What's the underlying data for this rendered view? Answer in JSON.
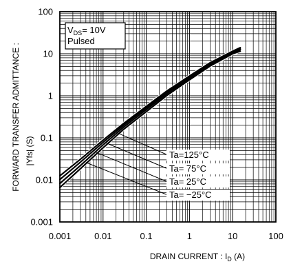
{
  "chart_data": {
    "type": "line",
    "x_scale": "log",
    "y_scale": "log",
    "xlim": [
      0.001,
      100
    ],
    "ylim": [
      0.001,
      100
    ],
    "grid": true,
    "x_ticks": [
      "0.001",
      "0.01",
      "0.1",
      "1",
      "10",
      "100"
    ],
    "y_ticks": [
      "0.001",
      "0.01",
      "0.1",
      "1",
      "10",
      "100"
    ],
    "xlabel": {
      "main": "DRAIN CURRENT : I",
      "sub": "D",
      "unit": " (A)"
    },
    "ylabel": {
      "line1": "FORWARD TRANSFER ADMITTANCE :",
      "line2": "|Yfs| (S)"
    },
    "conditions": {
      "vds_main": "V",
      "vds_sub": "DS",
      "vds_value": "= 10V",
      "mode": "Pulsed"
    },
    "series": [
      {
        "name": "Ta=125°C",
        "x": [
          0.001,
          0.003,
          0.01,
          0.03,
          0.1,
          0.3,
          1,
          3,
          10,
          15
        ],
        "y": [
          0.0125,
          0.031,
          0.088,
          0.22,
          0.56,
          1.3,
          2.95,
          6.1,
          11.5,
          14
        ]
      },
      {
        "name": "Ta= 75°C",
        "x": [
          0.001,
          0.003,
          0.01,
          0.03,
          0.1,
          0.3,
          1,
          3,
          10,
          15
        ],
        "y": [
          0.0102,
          0.0265,
          0.078,
          0.2,
          0.52,
          1.22,
          2.8,
          5.8,
          11,
          13
        ]
      },
      {
        "name": "Ta= 25°C",
        "x": [
          0.001,
          0.003,
          0.01,
          0.03,
          0.1,
          0.3,
          1,
          3,
          10,
          15
        ],
        "y": [
          0.0082,
          0.022,
          0.068,
          0.18,
          0.47,
          1.12,
          2.6,
          5.5,
          10.5,
          12.5
        ]
      },
      {
        "name": "Ta= −25°C",
        "x": [
          0.001,
          0.003,
          0.01,
          0.03,
          0.1,
          0.3,
          1,
          3,
          10,
          15
        ],
        "y": [
          0.0066,
          0.0185,
          0.058,
          0.16,
          0.42,
          1.02,
          2.4,
          5.1,
          10,
          11.5
        ]
      }
    ],
    "legend_anchor_points": [
      {
        "x": 0.022,
        "y": 0.13
      },
      {
        "x": 0.012,
        "y": 0.075
      },
      {
        "x": 0.007,
        "y": 0.045
      },
      {
        "x": 0.004,
        "y": 0.026
      }
    ]
  }
}
